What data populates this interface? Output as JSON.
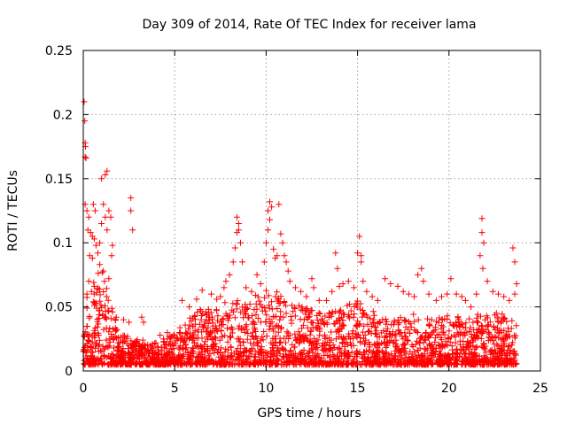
{
  "chart_data": {
    "type": "scatter",
    "title": "Day 309 of 2014, Rate Of TEC Index for receiver lama",
    "xlabel": "GPS time / hours",
    "ylabel": "ROTI / TECUs",
    "xlim": [
      0,
      25
    ],
    "ylim": [
      0,
      0.25
    ],
    "xticks": [
      0,
      5,
      10,
      15,
      20,
      25
    ],
    "xtick_labels": [
      "0",
      "5",
      "10",
      "15",
      "20",
      "25"
    ],
    "yticks": [
      0,
      0.05,
      0.1,
      0.15,
      0.2,
      0.25
    ],
    "ytick_labels": [
      "0",
      "0.05",
      "0.1",
      "0.15",
      "0.2",
      "0.25"
    ],
    "grid": true,
    "marker": "+",
    "color": "#ff0000",
    "series": [
      {
        "name": "ROTI",
        "points": [
          [
            0.05,
            0.21
          ],
          [
            0.08,
            0.195
          ],
          [
            0.1,
            0.178
          ],
          [
            0.12,
            0.175
          ],
          [
            0.1,
            0.167
          ],
          [
            0.15,
            0.166
          ],
          [
            0.1,
            0.13
          ],
          [
            0.2,
            0.125
          ],
          [
            0.3,
            0.12
          ],
          [
            0.25,
            0.11
          ],
          [
            0.4,
            0.108
          ],
          [
            0.5,
            0.105
          ],
          [
            0.6,
            0.103
          ],
          [
            0.7,
            0.098
          ],
          [
            0.35,
            0.09
          ],
          [
            0.5,
            0.088
          ],
          [
            0.8,
            0.092
          ],
          [
            0.9,
            0.1
          ],
          [
            1.0,
            0.115
          ],
          [
            1.1,
            0.13
          ],
          [
            1.2,
            0.12
          ],
          [
            1.3,
            0.11
          ],
          [
            0.55,
            0.13
          ],
          [
            0.65,
            0.125
          ],
          [
            1.0,
            0.15
          ],
          [
            1.2,
            0.153
          ],
          [
            1.3,
            0.156
          ],
          [
            1.4,
            0.125
          ],
          [
            1.5,
            0.12
          ],
          [
            1.6,
            0.098
          ],
          [
            1.55,
            0.09
          ],
          [
            0.9,
            0.083
          ],
          [
            1.1,
            0.078
          ],
          [
            1.4,
            0.072
          ],
          [
            0.3,
            0.07
          ],
          [
            0.6,
            0.066
          ],
          [
            0.2,
            0.06
          ],
          [
            0.45,
            0.062
          ],
          [
            2.6,
            0.135
          ],
          [
            2.6,
            0.125
          ],
          [
            2.7,
            0.11
          ],
          [
            1.8,
            0.042
          ],
          [
            2.2,
            0.04
          ],
          [
            2.5,
            0.038
          ],
          [
            3.2,
            0.042
          ],
          [
            3.3,
            0.038
          ],
          [
            4.2,
            0.028
          ],
          [
            4.6,
            0.03
          ],
          [
            5.4,
            0.055
          ],
          [
            5.8,
            0.05
          ],
          [
            6.2,
            0.056
          ],
          [
            6.4,
            0.048
          ],
          [
            6.5,
            0.063
          ],
          [
            7.0,
            0.06
          ],
          [
            7.3,
            0.056
          ],
          [
            7.5,
            0.058
          ],
          [
            7.7,
            0.065
          ],
          [
            7.8,
            0.07
          ],
          [
            8.0,
            0.075
          ],
          [
            8.2,
            0.085
          ],
          [
            8.3,
            0.096
          ],
          [
            8.4,
            0.12
          ],
          [
            8.4,
            0.108
          ],
          [
            8.5,
            0.115
          ],
          [
            8.6,
            0.1
          ],
          [
            8.7,
            0.085
          ],
          [
            8.5,
            0.11
          ],
          [
            8.9,
            0.065
          ],
          [
            9.2,
            0.062
          ],
          [
            9.5,
            0.075
          ],
          [
            9.7,
            0.068
          ],
          [
            9.9,
            0.085
          ],
          [
            10.0,
            0.1
          ],
          [
            10.1,
            0.125
          ],
          [
            10.1,
            0.11
          ],
          [
            10.2,
            0.132
          ],
          [
            10.3,
            0.128
          ],
          [
            10.2,
            0.118
          ],
          [
            10.4,
            0.095
          ],
          [
            10.5,
            0.088
          ],
          [
            10.6,
            0.09
          ],
          [
            10.7,
            0.13
          ],
          [
            10.8,
            0.107
          ],
          [
            10.9,
            0.1
          ],
          [
            11.0,
            0.09
          ],
          [
            11.1,
            0.085
          ],
          [
            11.2,
            0.078
          ],
          [
            11.3,
            0.07
          ],
          [
            11.6,
            0.065
          ],
          [
            11.9,
            0.062
          ],
          [
            12.2,
            0.058
          ],
          [
            12.5,
            0.072
          ],
          [
            12.6,
            0.065
          ],
          [
            12.9,
            0.055
          ],
          [
            13.3,
            0.055
          ],
          [
            13.6,
            0.062
          ],
          [
            13.8,
            0.092
          ],
          [
            13.9,
            0.08
          ],
          [
            14.0,
            0.066
          ],
          [
            14.2,
            0.068
          ],
          [
            14.5,
            0.07
          ],
          [
            14.8,
            0.065
          ],
          [
            15.0,
            0.092
          ],
          [
            15.1,
            0.105
          ],
          [
            15.2,
            0.09
          ],
          [
            15.3,
            0.07
          ],
          [
            15.5,
            0.062
          ],
          [
            15.2,
            0.085
          ],
          [
            15.8,
            0.058
          ],
          [
            16.1,
            0.055
          ],
          [
            16.5,
            0.072
          ],
          [
            16.8,
            0.068
          ],
          [
            17.2,
            0.066
          ],
          [
            17.5,
            0.062
          ],
          [
            17.8,
            0.06
          ],
          [
            18.1,
            0.058
          ],
          [
            18.3,
            0.075
          ],
          [
            18.5,
            0.08
          ],
          [
            18.6,
            0.07
          ],
          [
            18.9,
            0.06
          ],
          [
            19.3,
            0.055
          ],
          [
            19.6,
            0.058
          ],
          [
            19.9,
            0.06
          ],
          [
            20.1,
            0.072
          ],
          [
            20.4,
            0.06
          ],
          [
            20.7,
            0.058
          ],
          [
            20.9,
            0.055
          ],
          [
            21.2,
            0.05
          ],
          [
            21.5,
            0.06
          ],
          [
            21.7,
            0.09
          ],
          [
            21.8,
            0.119
          ],
          [
            21.8,
            0.108
          ],
          [
            21.9,
            0.1
          ],
          [
            21.85,
            0.08
          ],
          [
            22.1,
            0.07
          ],
          [
            22.4,
            0.062
          ],
          [
            22.7,
            0.06
          ],
          [
            23.0,
            0.058
          ],
          [
            23.3,
            0.055
          ],
          [
            23.5,
            0.096
          ],
          [
            23.6,
            0.085
          ],
          [
            23.7,
            0.068
          ],
          [
            23.6,
            0.06
          ]
        ]
      }
    ],
    "dense_band": {
      "note": "dense background band of ROTI samples across the day",
      "x_range": [
        0,
        23.7
      ],
      "base_low": 0.005,
      "envelope": [
        [
          0,
          0.06
        ],
        [
          1,
          0.08
        ],
        [
          1.6,
          0.05
        ],
        [
          2,
          0.03
        ],
        [
          3,
          0.025
        ],
        [
          4,
          0.022
        ],
        [
          5,
          0.03
        ],
        [
          6,
          0.045
        ],
        [
          7,
          0.05
        ],
        [
          8,
          0.058
        ],
        [
          9,
          0.055
        ],
        [
          10,
          0.065
        ],
        [
          11,
          0.06
        ],
        [
          12,
          0.05
        ],
        [
          13,
          0.045
        ],
        [
          14,
          0.05
        ],
        [
          15,
          0.055
        ],
        [
          16,
          0.045
        ],
        [
          17,
          0.04
        ],
        [
          18,
          0.045
        ],
        [
          19,
          0.04
        ],
        [
          20,
          0.045
        ],
        [
          21,
          0.04
        ],
        [
          22,
          0.048
        ],
        [
          23,
          0.045
        ],
        [
          23.7,
          0.04
        ]
      ]
    }
  }
}
